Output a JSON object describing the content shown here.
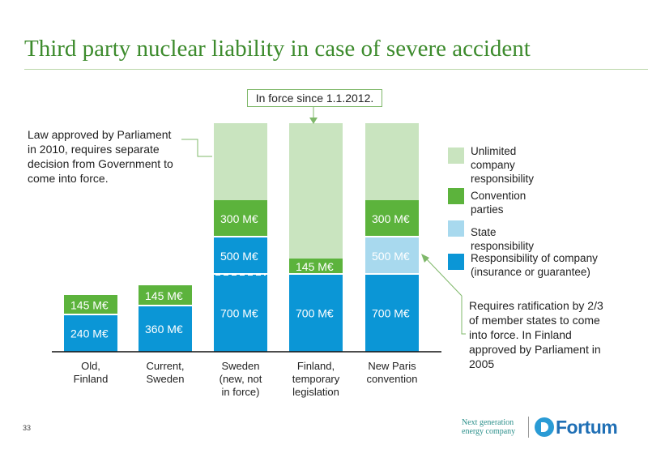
{
  "title": "Third party nuclear liability in case of severe accident",
  "in_force_label": "In force since 1.1.2012.",
  "note_left": [
    "Law approved by Parliament",
    "in 2010, requires separate",
    "decision from Government to",
    "come into force."
  ],
  "note_right": [
    "Requires ratification by 2/3",
    "of member states to come",
    "into force. In Finland",
    "approved by Parliament in",
    "2005"
  ],
  "legend": [
    {
      "lines": [
        "Unlimited",
        "company",
        "responsibility"
      ],
      "color": "#c9e4bf"
    },
    {
      "lines": [
        "Convention",
        "parties"
      ],
      "color": "#5cb33c"
    },
    {
      "lines": [
        "State",
        "responsibility"
      ],
      "color": "#a8d9ee"
    },
    {
      "lines": [
        "Responsibility of company",
        "(insurance or guarantee)"
      ],
      "color": "#0b96d6"
    }
  ],
  "chart_data": {
    "type": "bar",
    "stacked": true,
    "unit": "M€",
    "categories": [
      {
        "lines": [
          "Old,",
          "Finland"
        ]
      },
      {
        "lines": [
          "Current,",
          "Sweden"
        ]
      },
      {
        "lines": [
          "Sweden",
          "(new, not",
          "in force)"
        ]
      },
      {
        "lines": [
          "Finland,",
          "temporary",
          "legislation"
        ]
      },
      {
        "lines": [
          "New Paris",
          "convention"
        ]
      }
    ],
    "stacks": [
      [
        {
          "layer": "company",
          "value": 240,
          "label": "240 M€"
        },
        {
          "layer": "convention",
          "value": 145,
          "label": "145 M€"
        }
      ],
      [
        {
          "layer": "company",
          "value": 360,
          "label": "360 M€"
        },
        {
          "layer": "convention",
          "value": 145,
          "label": "145 M€"
        }
      ],
      [
        {
          "layer": "company",
          "value": 700,
          "label": "700 M€"
        },
        {
          "layer": "company",
          "value": 500,
          "label": "500 M€"
        },
        {
          "layer": "convention",
          "value": 300,
          "label": "300 M€"
        },
        {
          "layer": "unlimited",
          "label": ""
        }
      ],
      [
        {
          "layer": "company",
          "value": 700,
          "label": "700 M€"
        },
        {
          "layer": "convention",
          "value": 145,
          "label": "145 M€"
        },
        {
          "layer": "unlimited",
          "label": ""
        }
      ],
      [
        {
          "layer": "company",
          "value": 700,
          "label": "700 M€"
        },
        {
          "layer": "state",
          "value": 500,
          "label": "500 M€"
        },
        {
          "layer": "convention",
          "value": 300,
          "label": "300 M€"
        },
        {
          "layer": "unlimited",
          "label": ""
        }
      ]
    ],
    "colors": {
      "company": "#0b96d6",
      "state": "#a8d9ee",
      "convention": "#5cb33c",
      "unlimited": "#c9e4bf"
    }
  },
  "page_number": "33",
  "brand_tagline": [
    "Next generation",
    "energy company"
  ],
  "brand_name": "Fortum"
}
